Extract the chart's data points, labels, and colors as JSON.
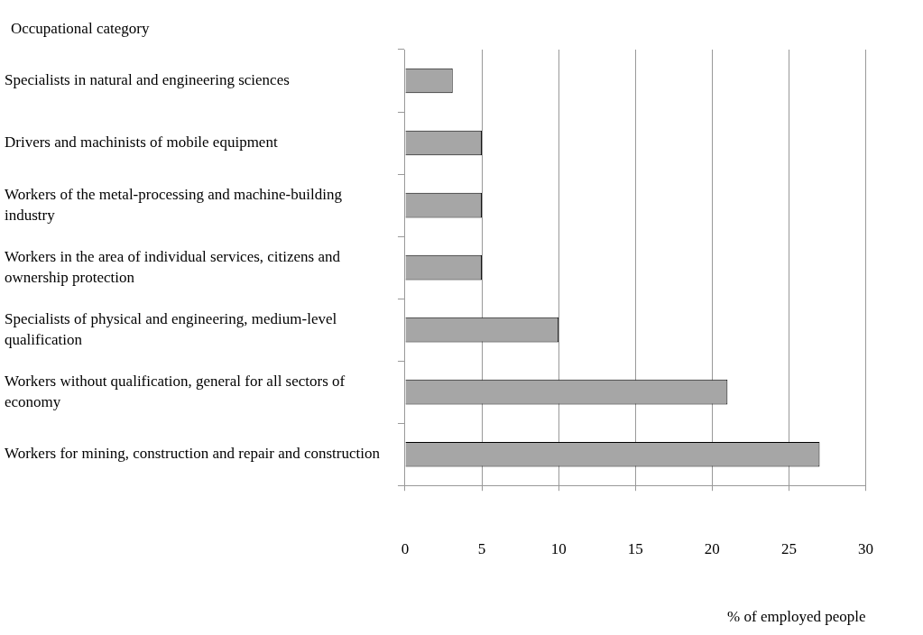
{
  "chart_data": {
    "type": "bar",
    "orientation": "horizontal",
    "ylabel": "Occupational category",
    "xlabel": "% of employed people",
    "categories": [
      "Specialists in natural and engineering sciences",
      "Drivers and machinists of mobile equipment",
      "Workers of the metal-processing and machine-building industry",
      "Workers in the area of individual services, citizens and ownership protection",
      "Specialists of physical and engineering, medium-level qualification",
      "Workers without qualification, general for all sectors of economy",
      "Workers for mining, construction and repair and construction"
    ],
    "values": [
      3.1,
      5,
      5,
      5,
      10,
      21,
      27
    ],
    "color": "#a6a6a6",
    "xlim": [
      0,
      30
    ],
    "xticks": [
      0,
      5,
      10,
      15,
      20,
      25,
      30
    ],
    "grid": "x"
  }
}
